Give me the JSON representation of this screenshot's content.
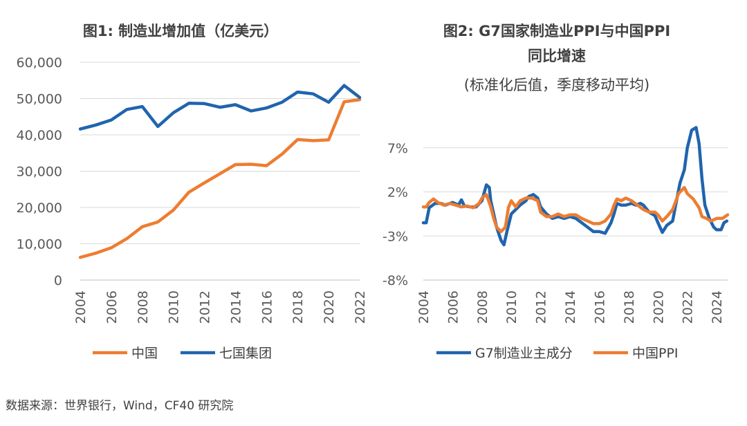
{
  "source_note": "数据来源：世界银行，Wind，CF40 研究院",
  "colors": {
    "orange": "#ED7D31",
    "blue": "#2064AE",
    "grid": "#D9D9D9",
    "axis": "#BFBFBF"
  },
  "chart_data": [
    {
      "type": "line",
      "title": "图1: 制造业增加值（亿美元）",
      "xlabel": "",
      "ylabel": "",
      "ylim": [
        0,
        60000
      ],
      "yticks": [
        0,
        10000,
        20000,
        30000,
        40000,
        50000,
        60000
      ],
      "ytick_labels": [
        "0",
        "10,000",
        "20,000",
        "30,000",
        "40,000",
        "50,000",
        "60,000"
      ],
      "xlim": [
        2004,
        2022
      ],
      "xticks": [
        "2004",
        "2006",
        "2008",
        "2010",
        "2012",
        "2014",
        "2016",
        "2018",
        "2020",
        "2022"
      ],
      "grid": true,
      "legend_position": "bottom",
      "x": [
        2004,
        2005,
        2006,
        2007,
        2008,
        2009,
        2010,
        2011,
        2012,
        2013,
        2014,
        2015,
        2016,
        2017,
        2018,
        2019,
        2020,
        2021,
        2022
      ],
      "series": [
        {
          "name": "中国",
          "color": "#ED7D31",
          "values": [
            6250,
            7400,
            8900,
            11400,
            14700,
            16000,
            19300,
            24200,
            26800,
            29300,
            31800,
            31900,
            31500,
            34700,
            38700,
            38400,
            38600,
            49100,
            49700
          ]
        },
        {
          "name": "七国集团",
          "color": "#2064AE",
          "values": [
            41600,
            42700,
            44100,
            47000,
            47800,
            42300,
            46100,
            48700,
            48600,
            47600,
            48300,
            46600,
            47400,
            49000,
            51800,
            51300,
            49000,
            53600,
            50300
          ]
        }
      ]
    },
    {
      "type": "line",
      "title": "图2: G7国家制造业PPI与中国PPI",
      "title_line2": "同比增速",
      "subtitle": "(标准化后值，季度移动平均)",
      "xlabel": "",
      "ylabel": "",
      "ylim": [
        -8,
        12
      ],
      "yticks": [
        -8,
        -3,
        2,
        7
      ],
      "ytick_labels": [
        "-8%",
        "-3%",
        "2%",
        "7%"
      ],
      "xlim": [
        2004,
        2024.75
      ],
      "xticks": [
        "2004",
        "2006",
        "2008",
        "2010",
        "2012",
        "2014",
        "2016",
        "2018",
        "2020",
        "2022",
        "2024"
      ],
      "grid": true,
      "legend_position": "bottom",
      "series": [
        {
          "name": "G7制造业主成分",
          "color": "#2064AE",
          "points": [
            [
              2004.0,
              -1.5
            ],
            [
              2004.2,
              -1.5
            ],
            [
              2004.4,
              0.2
            ],
            [
              2004.8,
              0.7
            ],
            [
              2005.2,
              0.7
            ],
            [
              2005.5,
              0.5
            ],
            [
              2006.0,
              0.8
            ],
            [
              2006.4,
              0.5
            ],
            [
              2006.6,
              1.1
            ],
            [
              2006.8,
              0.4
            ],
            [
              2007.2,
              0.3
            ],
            [
              2007.6,
              0.3
            ],
            [
              2008.0,
              1.0
            ],
            [
              2008.3,
              2.8
            ],
            [
              2008.5,
              2.5
            ],
            [
              2008.6,
              1.0
            ],
            [
              2008.8,
              -0.5
            ],
            [
              2009.0,
              -2.0
            ],
            [
              2009.3,
              -3.5
            ],
            [
              2009.5,
              -4.0
            ],
            [
              2009.7,
              -2.5
            ],
            [
              2010.0,
              -0.5
            ],
            [
              2010.3,
              0.0
            ],
            [
              2010.6,
              0.5
            ],
            [
              2011.0,
              1.0
            ],
            [
              2011.2,
              1.5
            ],
            [
              2011.5,
              1.7
            ],
            [
              2011.8,
              1.3
            ],
            [
              2012.0,
              0.3
            ],
            [
              2012.4,
              -0.5
            ],
            [
              2012.8,
              -1.0
            ],
            [
              2013.2,
              -0.8
            ],
            [
              2013.6,
              -1.0
            ],
            [
              2014.0,
              -0.8
            ],
            [
              2014.4,
              -1.0
            ],
            [
              2014.8,
              -1.5
            ],
            [
              2015.2,
              -2.0
            ],
            [
              2015.6,
              -2.5
            ],
            [
              2016.0,
              -2.5
            ],
            [
              2016.4,
              -2.7
            ],
            [
              2016.8,
              -1.5
            ],
            [
              2017.0,
              -0.5
            ],
            [
              2017.2,
              0.7
            ],
            [
              2017.5,
              0.5
            ],
            [
              2017.8,
              0.5
            ],
            [
              2018.2,
              0.7
            ],
            [
              2018.5,
              0.5
            ],
            [
              2018.8,
              0.7
            ],
            [
              2019.0,
              0.5
            ],
            [
              2019.4,
              -0.3
            ],
            [
              2019.8,
              -0.7
            ],
            [
              2020.0,
              -1.5
            ],
            [
              2020.3,
              -2.6
            ],
            [
              2020.6,
              -1.8
            ],
            [
              2021.0,
              -1.3
            ],
            [
              2021.3,
              1.3
            ],
            [
              2021.5,
              3.0
            ],
            [
              2021.8,
              4.5
            ],
            [
              2022.0,
              7.0
            ],
            [
              2022.3,
              9.0
            ],
            [
              2022.6,
              9.3
            ],
            [
              2022.8,
              7.5
            ],
            [
              2023.0,
              3.5
            ],
            [
              2023.2,
              0.5
            ],
            [
              2023.5,
              -1.0
            ],
            [
              2023.8,
              -2.0
            ],
            [
              2024.0,
              -2.3
            ],
            [
              2024.3,
              -2.3
            ],
            [
              2024.5,
              -1.5
            ],
            [
              2024.7,
              -1.3
            ]
          ]
        },
        {
          "name": "中国PPI",
          "color": "#ED7D31",
          "points": [
            [
              2004.0,
              0.3
            ],
            [
              2004.2,
              0.3
            ],
            [
              2004.4,
              0.8
            ],
            [
              2004.7,
              1.2
            ],
            [
              2005.0,
              0.8
            ],
            [
              2005.4,
              0.5
            ],
            [
              2005.8,
              0.7
            ],
            [
              2006.2,
              0.5
            ],
            [
              2006.6,
              0.3
            ],
            [
              2007.0,
              0.4
            ],
            [
              2007.4,
              0.2
            ],
            [
              2007.8,
              0.7
            ],
            [
              2008.0,
              1.3
            ],
            [
              2008.3,
              1.7
            ],
            [
              2008.6,
              0.3
            ],
            [
              2008.8,
              -1.0
            ],
            [
              2009.0,
              -2.0
            ],
            [
              2009.3,
              -2.5
            ],
            [
              2009.6,
              -2.0
            ],
            [
              2009.8,
              0.2
            ],
            [
              2010.0,
              1.0
            ],
            [
              2010.3,
              0.3
            ],
            [
              2010.6,
              1.0
            ],
            [
              2011.0,
              1.3
            ],
            [
              2011.4,
              1.3
            ],
            [
              2011.8,
              1.0
            ],
            [
              2012.0,
              -0.3
            ],
            [
              2012.4,
              -0.8
            ],
            [
              2012.8,
              -0.8
            ],
            [
              2013.2,
              -0.5
            ],
            [
              2013.6,
              -0.8
            ],
            [
              2014.0,
              -0.6
            ],
            [
              2014.4,
              -0.6
            ],
            [
              2014.8,
              -1.0
            ],
            [
              2015.2,
              -1.3
            ],
            [
              2015.6,
              -1.6
            ],
            [
              2016.0,
              -1.6
            ],
            [
              2016.4,
              -1.3
            ],
            [
              2016.8,
              -0.5
            ],
            [
              2017.0,
              0.5
            ],
            [
              2017.2,
              1.2
            ],
            [
              2017.5,
              1.0
            ],
            [
              2017.8,
              1.3
            ],
            [
              2018.2,
              1.0
            ],
            [
              2018.6,
              0.5
            ],
            [
              2019.0,
              0.0
            ],
            [
              2019.4,
              -0.3
            ],
            [
              2019.8,
              -0.3
            ],
            [
              2020.0,
              -0.6
            ],
            [
              2020.3,
              -1.3
            ],
            [
              2020.6,
              -0.8
            ],
            [
              2021.0,
              0.0
            ],
            [
              2021.4,
              1.8
            ],
            [
              2021.8,
              2.5
            ],
            [
              2022.0,
              1.8
            ],
            [
              2022.4,
              1.2
            ],
            [
              2022.8,
              0.2
            ],
            [
              2023.0,
              -0.8
            ],
            [
              2023.3,
              -1.0
            ],
            [
              2023.6,
              -1.3
            ],
            [
              2024.0,
              -1.0
            ],
            [
              2024.4,
              -1.0
            ],
            [
              2024.75,
              -0.6
            ]
          ]
        }
      ]
    }
  ]
}
